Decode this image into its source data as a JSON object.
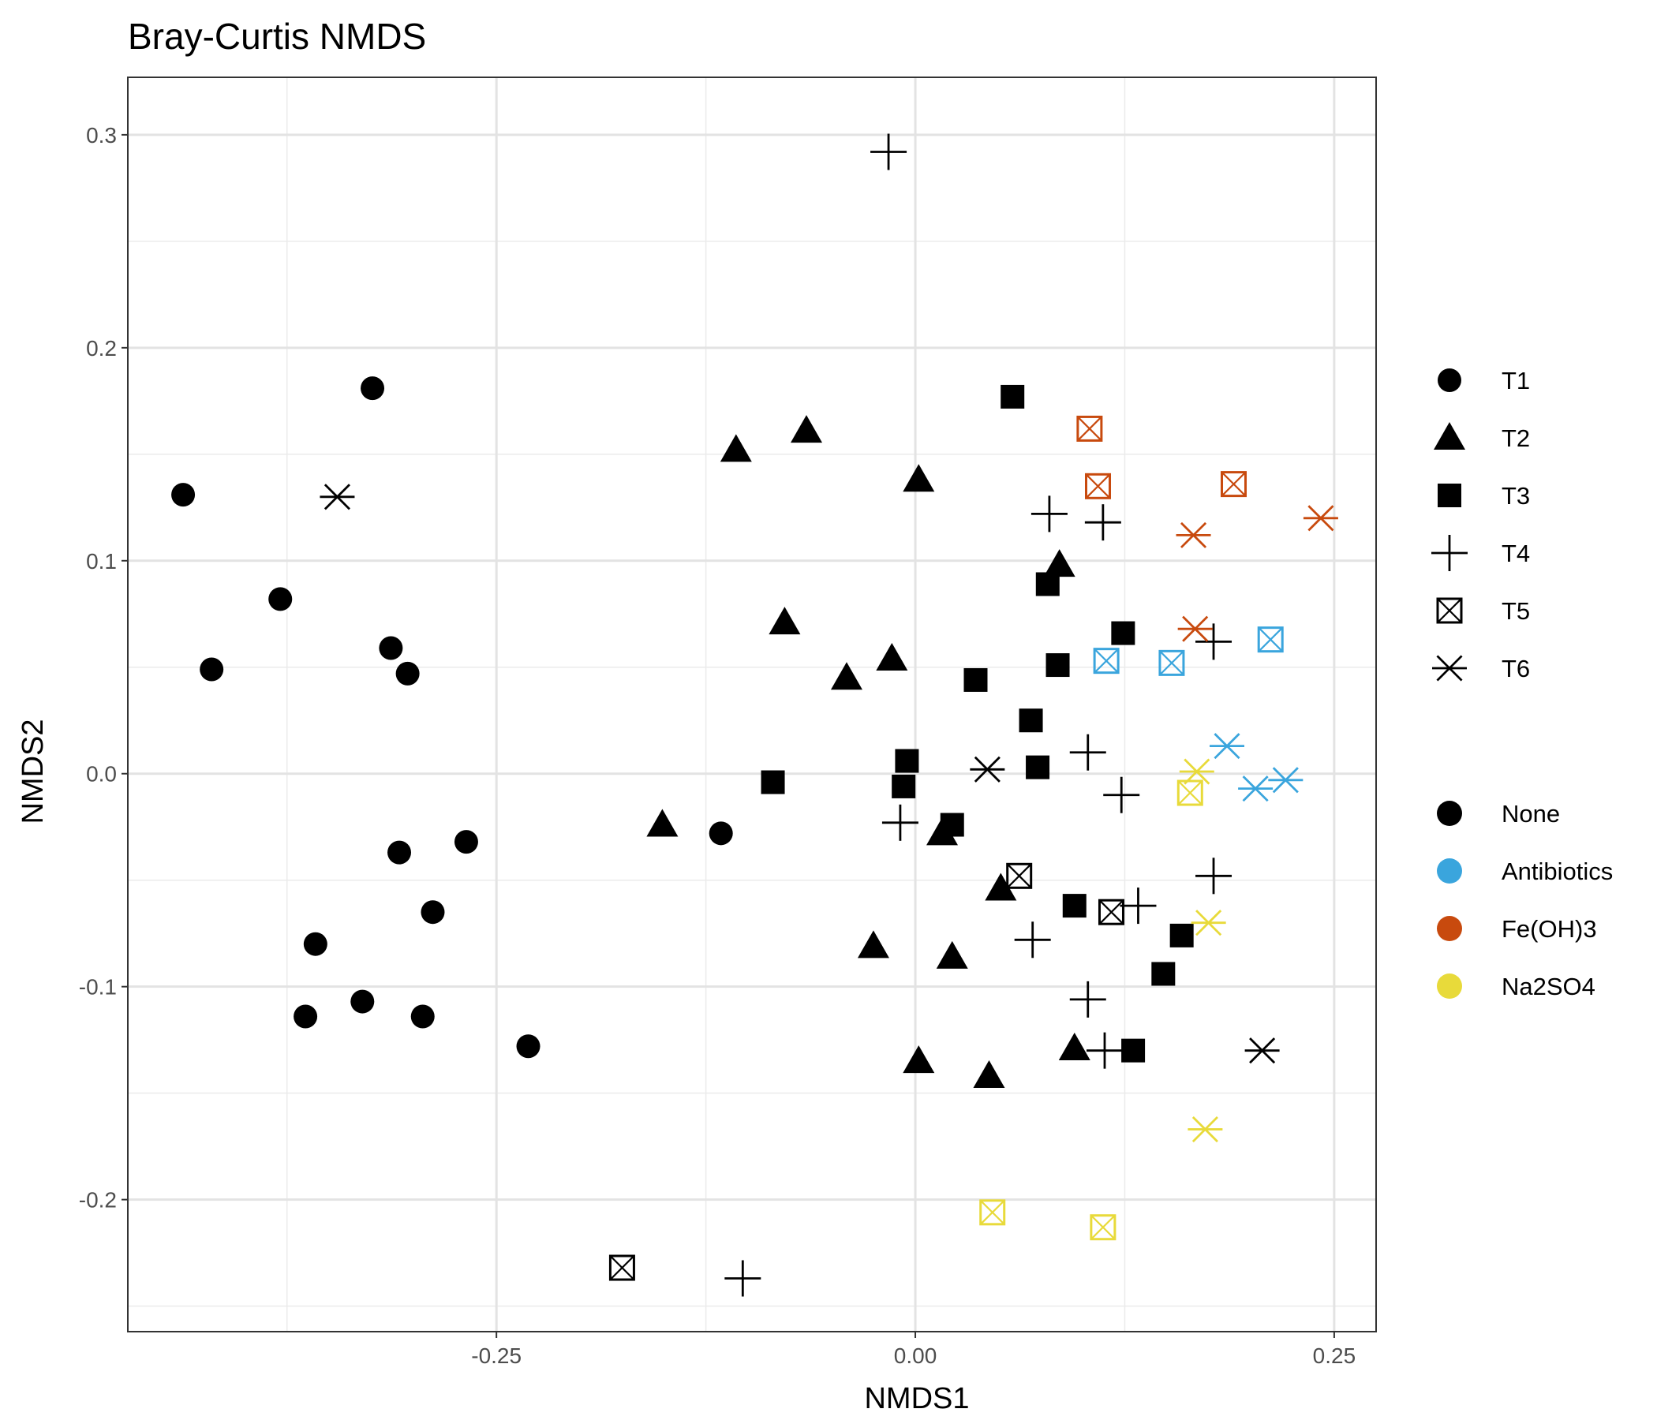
{
  "chart_data": {
    "type": "scatter",
    "title": "Bray-Curtis NMDS",
    "xlabel": "NMDS1",
    "ylabel": "NMDS2",
    "xlim": [
      -0.47,
      0.275
    ],
    "ylim": [
      -0.262,
      0.327
    ],
    "x_ticks": [
      {
        "value": -0.25,
        "label": "-0.25"
      },
      {
        "value": 0.0,
        "label": "0.00"
      },
      {
        "value": 0.25,
        "label": "0.25"
      }
    ],
    "y_ticks": [
      {
        "value": 0.3,
        "label": "0.3"
      },
      {
        "value": 0.2,
        "label": "0.2"
      },
      {
        "value": 0.1,
        "label": "0.1"
      },
      {
        "value": 0.0,
        "label": "0.0"
      },
      {
        "value": -0.1,
        "label": "-0.1"
      },
      {
        "value": -0.2,
        "label": "-0.2"
      }
    ],
    "grid": true,
    "legend_position": "right",
    "shape_legend": [
      {
        "key": "T1",
        "label": "T1",
        "shape": "circle"
      },
      {
        "key": "T2",
        "label": "T2",
        "shape": "triangle"
      },
      {
        "key": "T3",
        "label": "T3",
        "shape": "square"
      },
      {
        "key": "T4",
        "label": "T4",
        "shape": "plus"
      },
      {
        "key": "T5",
        "label": "T5",
        "shape": "boxed-x"
      },
      {
        "key": "T6",
        "label": "T6",
        "shape": "asterisk"
      }
    ],
    "color_legend": [
      {
        "key": "None",
        "label": "None",
        "color": "#000000"
      },
      {
        "key": "Antibiotics",
        "label": "Antibiotics",
        "color": "#3AA5DD"
      },
      {
        "key": "Fe(OH)3",
        "label": "Fe(OH)3",
        "color": "#C84A0E"
      },
      {
        "key": "Na2SO4",
        "label": "Na2SO4",
        "color": "#E8DA3A"
      }
    ],
    "points": [
      {
        "x": -0.437,
        "y": 0.131,
        "shape": "T1",
        "treatment": "None"
      },
      {
        "x": -0.42,
        "y": 0.049,
        "shape": "T1",
        "treatment": "None"
      },
      {
        "x": -0.379,
        "y": 0.082,
        "shape": "T1",
        "treatment": "None"
      },
      {
        "x": -0.324,
        "y": 0.181,
        "shape": "T1",
        "treatment": "None"
      },
      {
        "x": -0.313,
        "y": 0.059,
        "shape": "T1",
        "treatment": "None"
      },
      {
        "x": -0.303,
        "y": 0.047,
        "shape": "T1",
        "treatment": "None"
      },
      {
        "x": -0.308,
        "y": -0.037,
        "shape": "T1",
        "treatment": "None"
      },
      {
        "x": -0.268,
        "y": -0.032,
        "shape": "T1",
        "treatment": "None"
      },
      {
        "x": -0.288,
        "y": -0.065,
        "shape": "T1",
        "treatment": "None"
      },
      {
        "x": -0.358,
        "y": -0.08,
        "shape": "T1",
        "treatment": "None"
      },
      {
        "x": -0.364,
        "y": -0.114,
        "shape": "T1",
        "treatment": "None"
      },
      {
        "x": -0.33,
        "y": -0.107,
        "shape": "T1",
        "treatment": "None"
      },
      {
        "x": -0.294,
        "y": -0.114,
        "shape": "T1",
        "treatment": "None"
      },
      {
        "x": -0.231,
        "y": -0.128,
        "shape": "T1",
        "treatment": "None"
      },
      {
        "x": -0.116,
        "y": -0.028,
        "shape": "T1",
        "treatment": "None"
      },
      {
        "x": -0.107,
        "y": 0.152,
        "shape": "T2",
        "treatment": "None"
      },
      {
        "x": -0.065,
        "y": 0.161,
        "shape": "T2",
        "treatment": "None"
      },
      {
        "x": 0.002,
        "y": 0.138,
        "shape": "T2",
        "treatment": "None"
      },
      {
        "x": 0.086,
        "y": 0.098,
        "shape": "T2",
        "treatment": "None"
      },
      {
        "x": -0.078,
        "y": 0.071,
        "shape": "T2",
        "treatment": "None"
      },
      {
        "x": -0.041,
        "y": 0.045,
        "shape": "T2",
        "treatment": "None"
      },
      {
        "x": -0.014,
        "y": 0.054,
        "shape": "T2",
        "treatment": "None"
      },
      {
        "x": -0.151,
        "y": -0.024,
        "shape": "T2",
        "treatment": "None"
      },
      {
        "x": 0.016,
        "y": -0.028,
        "shape": "T2",
        "treatment": "None"
      },
      {
        "x": 0.051,
        "y": -0.054,
        "shape": "T2",
        "treatment": "None"
      },
      {
        "x": -0.025,
        "y": -0.081,
        "shape": "T2",
        "treatment": "None"
      },
      {
        "x": 0.022,
        "y": -0.086,
        "shape": "T2",
        "treatment": "None"
      },
      {
        "x": 0.002,
        "y": -0.135,
        "shape": "T2",
        "treatment": "None"
      },
      {
        "x": 0.044,
        "y": -0.142,
        "shape": "T2",
        "treatment": "None"
      },
      {
        "x": 0.095,
        "y": -0.129,
        "shape": "T2",
        "treatment": "None"
      },
      {
        "x": 0.058,
        "y": 0.177,
        "shape": "T3",
        "treatment": "None"
      },
      {
        "x": 0.079,
        "y": 0.089,
        "shape": "T3",
        "treatment": "None"
      },
      {
        "x": 0.124,
        "y": 0.066,
        "shape": "T3",
        "treatment": "None"
      },
      {
        "x": 0.085,
        "y": 0.051,
        "shape": "T3",
        "treatment": "None"
      },
      {
        "x": 0.036,
        "y": 0.044,
        "shape": "T3",
        "treatment": "None"
      },
      {
        "x": 0.069,
        "y": 0.025,
        "shape": "T3",
        "treatment": "None"
      },
      {
        "x": 0.073,
        "y": 0.003,
        "shape": "T3",
        "treatment": "None"
      },
      {
        "x": -0.085,
        "y": -0.004,
        "shape": "T3",
        "treatment": "None"
      },
      {
        "x": -0.005,
        "y": 0.006,
        "shape": "T3",
        "treatment": "None"
      },
      {
        "x": -0.007,
        "y": -0.006,
        "shape": "T3",
        "treatment": "None"
      },
      {
        "x": 0.022,
        "y": -0.024,
        "shape": "T3",
        "treatment": "None"
      },
      {
        "x": 0.095,
        "y": -0.062,
        "shape": "T3",
        "treatment": "None"
      },
      {
        "x": 0.159,
        "y": -0.076,
        "shape": "T3",
        "treatment": "None"
      },
      {
        "x": 0.148,
        "y": -0.094,
        "shape": "T3",
        "treatment": "None"
      },
      {
        "x": 0.13,
        "y": -0.13,
        "shape": "T3",
        "treatment": "None"
      },
      {
        "x": -0.016,
        "y": 0.292,
        "shape": "T4",
        "treatment": "None"
      },
      {
        "x": 0.08,
        "y": 0.122,
        "shape": "T4",
        "treatment": "None"
      },
      {
        "x": 0.112,
        "y": 0.118,
        "shape": "T4",
        "treatment": "None"
      },
      {
        "x": 0.178,
        "y": 0.062,
        "shape": "T4",
        "treatment": "None"
      },
      {
        "x": 0.103,
        "y": 0.01,
        "shape": "T4",
        "treatment": "None"
      },
      {
        "x": 0.123,
        "y": -0.01,
        "shape": "T4",
        "treatment": "None"
      },
      {
        "x": -0.009,
        "y": -0.023,
        "shape": "T4",
        "treatment": "None"
      },
      {
        "x": 0.133,
        "y": -0.062,
        "shape": "T4",
        "treatment": "None"
      },
      {
        "x": 0.178,
        "y": -0.048,
        "shape": "T4",
        "treatment": "None"
      },
      {
        "x": 0.07,
        "y": -0.078,
        "shape": "T4",
        "treatment": "None"
      },
      {
        "x": 0.103,
        "y": -0.106,
        "shape": "T4",
        "treatment": "None"
      },
      {
        "x": 0.113,
        "y": -0.13,
        "shape": "T4",
        "treatment": "None"
      },
      {
        "x": -0.103,
        "y": -0.237,
        "shape": "T4",
        "treatment": "None"
      },
      {
        "x": 0.104,
        "y": 0.162,
        "shape": "T5",
        "treatment": "Fe(OH)3"
      },
      {
        "x": 0.109,
        "y": 0.135,
        "shape": "T5",
        "treatment": "Fe(OH)3"
      },
      {
        "x": 0.19,
        "y": 0.136,
        "shape": "T5",
        "treatment": "Fe(OH)3"
      },
      {
        "x": 0.114,
        "y": 0.053,
        "shape": "T5",
        "treatment": "Antibiotics"
      },
      {
        "x": 0.153,
        "y": 0.052,
        "shape": "T5",
        "treatment": "Antibiotics"
      },
      {
        "x": 0.212,
        "y": 0.063,
        "shape": "T5",
        "treatment": "Antibiotics"
      },
      {
        "x": 0.164,
        "y": -0.009,
        "shape": "T5",
        "treatment": "Na2SO4"
      },
      {
        "x": 0.062,
        "y": -0.048,
        "shape": "T5",
        "treatment": "None"
      },
      {
        "x": 0.117,
        "y": -0.065,
        "shape": "T5",
        "treatment": "None"
      },
      {
        "x": 0.046,
        "y": -0.206,
        "shape": "T5",
        "treatment": "Na2SO4"
      },
      {
        "x": 0.112,
        "y": -0.213,
        "shape": "T5",
        "treatment": "Na2SO4"
      },
      {
        "x": -0.175,
        "y": -0.232,
        "shape": "T5",
        "treatment": "None"
      },
      {
        "x": -0.345,
        "y": 0.13,
        "shape": "T6",
        "treatment": "None"
      },
      {
        "x": 0.166,
        "y": 0.112,
        "shape": "T6",
        "treatment": "Fe(OH)3"
      },
      {
        "x": 0.242,
        "y": 0.12,
        "shape": "T6",
        "treatment": "Fe(OH)3"
      },
      {
        "x": 0.167,
        "y": 0.068,
        "shape": "T6",
        "treatment": "Fe(OH)3"
      },
      {
        "x": 0.186,
        "y": 0.013,
        "shape": "T6",
        "treatment": "Antibiotics"
      },
      {
        "x": 0.203,
        "y": -0.007,
        "shape": "T6",
        "treatment": "Antibiotics"
      },
      {
        "x": 0.221,
        "y": -0.003,
        "shape": "T6",
        "treatment": "Antibiotics"
      },
      {
        "x": 0.168,
        "y": 0.001,
        "shape": "T6",
        "treatment": "Na2SO4"
      },
      {
        "x": 0.043,
        "y": 0.002,
        "shape": "T6",
        "treatment": "None"
      },
      {
        "x": 0.175,
        "y": -0.07,
        "shape": "T6",
        "treatment": "Na2SO4"
      },
      {
        "x": 0.207,
        "y": -0.13,
        "shape": "T6",
        "treatment": "None"
      },
      {
        "x": 0.173,
        "y": -0.167,
        "shape": "T6",
        "treatment": "Na2SO4"
      }
    ]
  }
}
